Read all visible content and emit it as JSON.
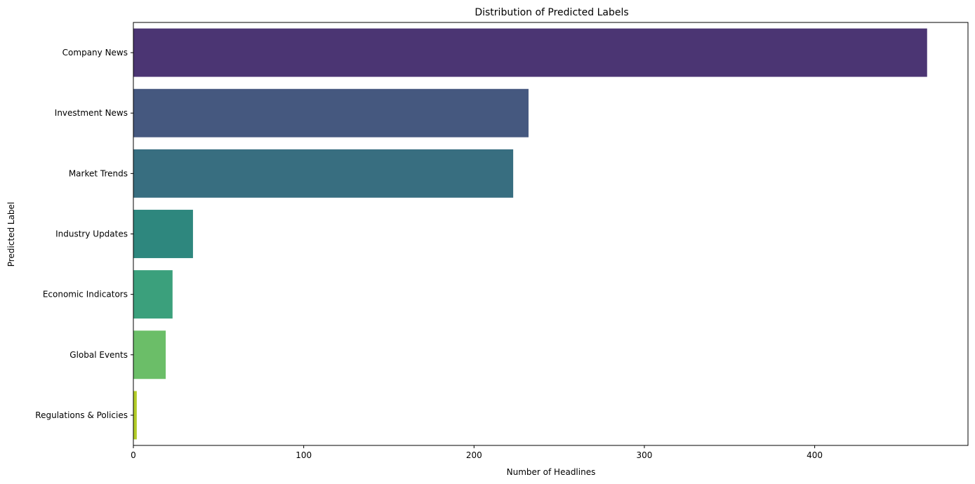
{
  "chart_data": {
    "type": "bar",
    "orientation": "horizontal",
    "title": "Distribution of Predicted Labels",
    "xlabel": "Number of Headlines",
    "ylabel": "Predicted Label",
    "categories": [
      "Company News",
      "Investment News",
      "Market Trends",
      "Industry Updates",
      "Economic Indicators",
      "Global Events",
      "Regulations & Policies"
    ],
    "values": [
      466,
      232,
      223,
      35,
      23,
      19,
      2
    ],
    "colors": [
      "#4b3573",
      "#45587f",
      "#386e80",
      "#2e877e",
      "#3ba07c",
      "#6bbe68",
      "#b3cc28"
    ],
    "xlim": [
      0,
      490
    ],
    "xticks": [
      0,
      100,
      200,
      300,
      400
    ],
    "grid": false,
    "legend": "none"
  }
}
